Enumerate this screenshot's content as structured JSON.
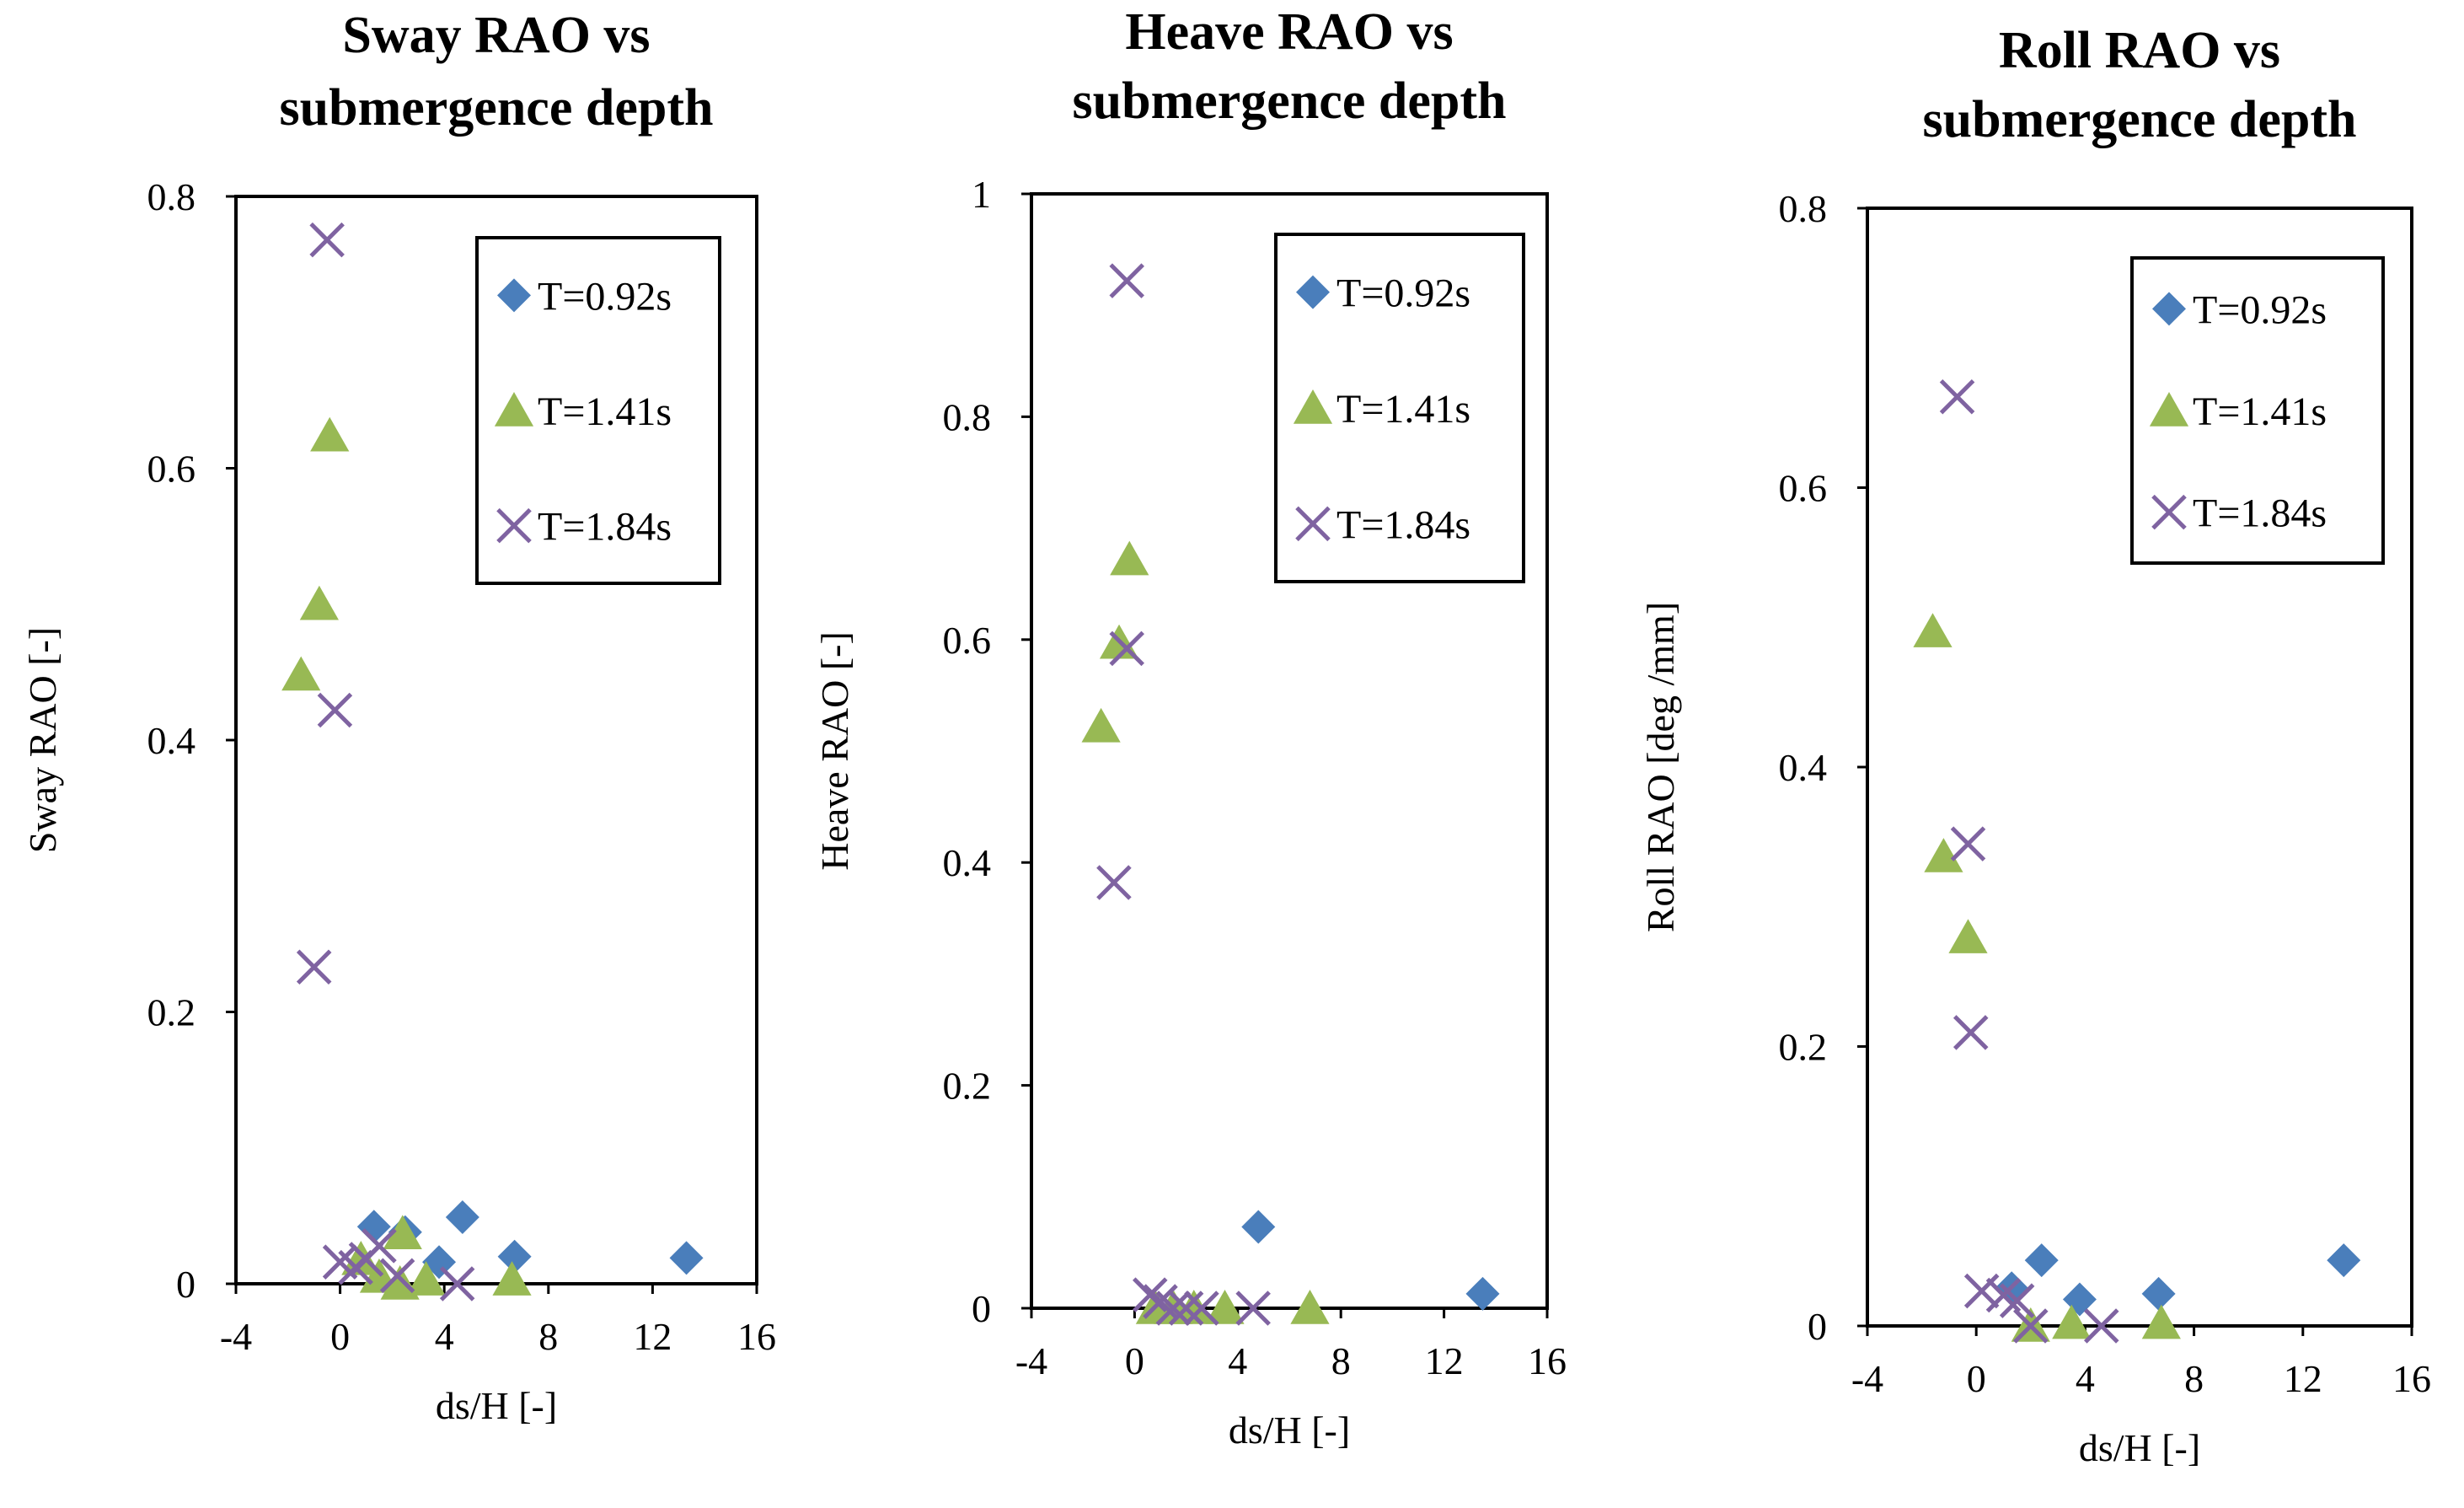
{
  "colors": {
    "T092": "#4a7ebb",
    "T141": "#98b954",
    "T184": "#7f63a1",
    "frame": "#000000"
  },
  "series_markers": [
    "diamond",
    "triangle",
    "cross"
  ],
  "chart_data": [
    {
      "type": "scatter",
      "title": "Sway RAO vs submergence depth",
      "title_lines": [
        "Sway RAO vs",
        "submergence depth"
      ],
      "xlabel": "ds/H [-]",
      "ylabel": "Sway RAO [-]",
      "xlim": [
        -4,
        16
      ],
      "ylim": [
        0,
        0.8
      ],
      "xticks": [
        "-4",
        "0",
        "4",
        "8",
        "12",
        "16"
      ],
      "yticks": [
        "0",
        "0.2",
        "0.4",
        "0.6",
        "0.8"
      ],
      "legend_position": "top-right",
      "grid": false,
      "series": [
        {
          "name": "T=0.92s",
          "points": [
            [
              1.3,
              0.042
            ],
            [
              2.5,
              0.038
            ],
            [
              3.8,
              0.016
            ],
            [
              4.7,
              0.049
            ],
            [
              6.7,
              0.02
            ],
            [
              13.3,
              0.019
            ]
          ]
        },
        {
          "name": "T=1.41s",
          "points": [
            [
              -1.5,
              0.448
            ],
            [
              -0.8,
              0.5
            ],
            [
              -0.4,
              0.624
            ],
            [
              0.8,
              0.018
            ],
            [
              1.5,
              0.005
            ],
            [
              2.3,
              0.0
            ],
            [
              2.4,
              0.037
            ],
            [
              3.3,
              0.003
            ],
            [
              6.6,
              0.003
            ]
          ]
        },
        {
          "name": "T=1.84s",
          "points": [
            [
              -1.0,
              0.233
            ],
            [
              -0.5,
              0.768
            ],
            [
              -0.2,
              0.422
            ],
            [
              0.0,
              0.016
            ],
            [
              0.6,
              0.012
            ],
            [
              1.0,
              0.018
            ],
            [
              1.5,
              0.028
            ],
            [
              2.2,
              0.006
            ],
            [
              4.5,
              0.0
            ]
          ]
        }
      ]
    },
    {
      "type": "scatter",
      "title": "Heave RAO vs submergence depth",
      "title_lines": [
        "Heave RAO vs",
        "submergence depth"
      ],
      "xlabel": "ds/H [-]",
      "ylabel": "Heave RAO [-]",
      "xlim": [
        -4,
        16
      ],
      "ylim": [
        0,
        1
      ],
      "xticks": [
        "-4",
        "0",
        "4",
        "8",
        "12",
        "16"
      ],
      "yticks": [
        "0",
        "0.2",
        "0.4",
        "0.6",
        "0.8",
        "1"
      ],
      "legend_position": "top-right",
      "grid": false,
      "series": [
        {
          "name": "T=0.92s",
          "points": [
            [
              4.8,
              0.073
            ],
            [
              13.5,
              0.013
            ]
          ]
        },
        {
          "name": "T=1.41s",
          "points": [
            [
              -1.3,
              0.522
            ],
            [
              -0.6,
              0.597
            ],
            [
              -0.2,
              0.672
            ],
            [
              0.8,
              0.0
            ],
            [
              1.5,
              0.0
            ],
            [
              2.3,
              0.0
            ],
            [
              3.5,
              0.0
            ],
            [
              6.8,
              0.0
            ]
          ]
        },
        {
          "name": "T=1.84s",
          "points": [
            [
              -0.8,
              0.382
            ],
            [
              -0.3,
              0.592
            ],
            [
              -0.3,
              0.922
            ],
            [
              0.6,
              0.012
            ],
            [
              1.0,
              0.006
            ],
            [
              1.5,
              0.0
            ],
            [
              2.0,
              0.0
            ],
            [
              2.6,
              0.0
            ],
            [
              4.6,
              0.0
            ]
          ]
        }
      ]
    },
    {
      "type": "scatter",
      "title": "Roll RAO vs submergence depth",
      "title_lines": [
        "Roll RAO vs",
        "submergence depth"
      ],
      "xlabel": "ds/H [-]",
      "ylabel": "Roll RAO [deg /mm]",
      "xlim": [
        -4,
        16
      ],
      "ylim": [
        0,
        0.8
      ],
      "xticks": [
        "-4",
        "0",
        "4",
        "8",
        "12",
        "16"
      ],
      "yticks": [
        "0",
        "0.2",
        "0.4",
        "0.6",
        "0.8"
      ],
      "legend_position": "top-right",
      "grid": false,
      "series": [
        {
          "name": "T=0.92s",
          "points": [
            [
              1.3,
              0.027
            ],
            [
              2.4,
              0.047
            ],
            [
              3.8,
              0.019
            ],
            [
              6.7,
              0.023
            ],
            [
              13.5,
              0.047
            ]
          ]
        },
        {
          "name": "T=1.41s",
          "points": [
            [
              -1.6,
              0.497
            ],
            [
              -1.2,
              0.336
            ],
            [
              -0.3,
              0.278
            ],
            [
              2.0,
              0.0
            ],
            [
              3.5,
              0.002
            ],
            [
              6.8,
              0.002
            ]
          ]
        },
        {
          "name": "T=1.84s",
          "points": [
            [
              -0.7,
              0.665
            ],
            [
              -0.3,
              0.345
            ],
            [
              -0.2,
              0.21
            ],
            [
              0.2,
              0.025
            ],
            [
              1.0,
              0.022
            ],
            [
              1.5,
              0.018
            ],
            [
              2.0,
              0.0
            ],
            [
              4.6,
              0.0
            ]
          ]
        }
      ]
    }
  ]
}
